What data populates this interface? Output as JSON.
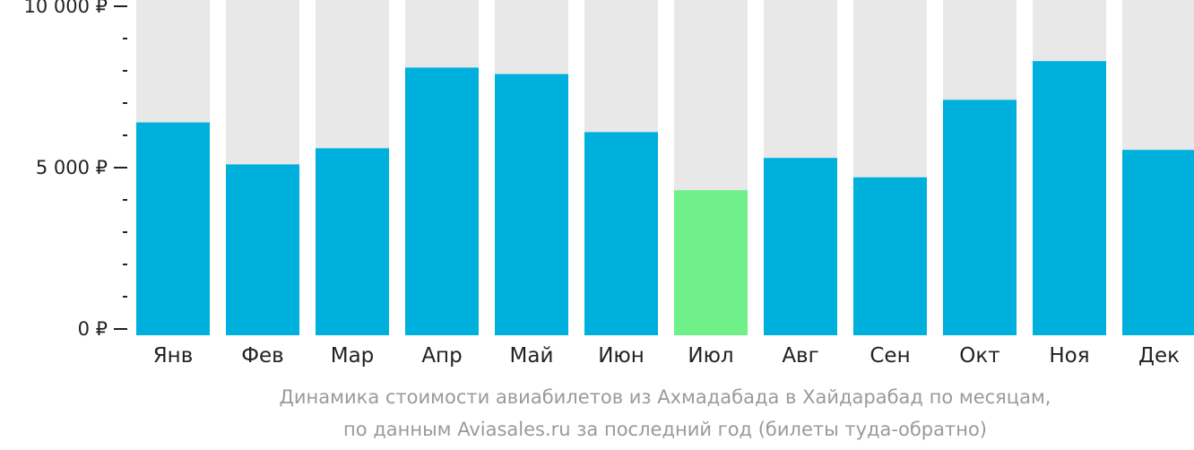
{
  "chart_data": {
    "type": "bar",
    "categories": [
      "Янв",
      "Фев",
      "Мар",
      "Апр",
      "Май",
      "Июн",
      "Июл",
      "Авг",
      "Сен",
      "Окт",
      "Ноя",
      "Дек"
    ],
    "values": [
      6400,
      5100,
      5600,
      8100,
      7900,
      6100,
      4300,
      5300,
      4700,
      7100,
      8300,
      5550
    ],
    "ylim": [
      0,
      10000
    ],
    "yticks": [
      {
        "value": 0,
        "label": "0 ₽"
      },
      {
        "value": 5000,
        "label": "5 000 ₽"
      },
      {
        "value": 10000,
        "label": "10 000 ₽"
      }
    ],
    "minor_tick_step": 1000,
    "highlight_index": 6,
    "colors": {
      "bar": "#00b0dc",
      "highlight": "#6ff088",
      "track": "#e8e8e8",
      "axis": "#222222"
    },
    "caption": [
      "Динамика стоимости авиабилетов из Ахмадабада в Хайдарабад по месяцам,",
      "по данным Aviasales.ru за последний год (билеты туда-обратно)"
    ]
  }
}
